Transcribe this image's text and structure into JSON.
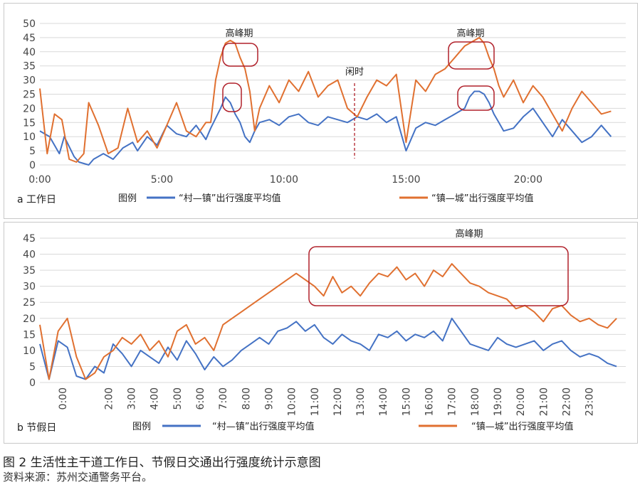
{
  "charts": [
    {
      "id": "a",
      "subtitle": "a 工作日",
      "legend_title": "图例",
      "peak_label": "高峰期",
      "idle_label": "闲时",
      "chart_data": {
        "type": "line",
        "ylim": [
          0,
          50
        ],
        "yticks": [
          0,
          5,
          10,
          15,
          20,
          25,
          30,
          35,
          40,
          45,
          50
        ],
        "xlim": [
          0,
          24
        ],
        "xticks": [
          0,
          5,
          10,
          15,
          20
        ],
        "xtick_labels": [
          "0:00",
          "5:00",
          "10:00",
          "15:00",
          "20:00"
        ],
        "grid": true,
        "annotations": [
          {
            "text": "高峰期",
            "x": 8.0
          },
          {
            "text": "高峰期",
            "x": 18.0
          },
          {
            "text": "闲时",
            "x": 13.0
          }
        ],
        "series": [
          {
            "name": "“村—镇”出行强度平均值",
            "color": "#4472c4",
            "x": [
              0,
              0.4,
              0.8,
              1.0,
              1.4,
              1.6,
              2.0,
              2.2,
              2.6,
              3.0,
              3.4,
              3.8,
              4.0,
              4.4,
              4.8,
              5.2,
              5.6,
              6.0,
              6.4,
              6.8,
              7.0,
              7.4,
              7.6,
              7.8,
              8.0,
              8.2,
              8.4,
              8.6,
              8.8,
              9.0,
              9.4,
              9.8,
              10.2,
              10.6,
              11.0,
              11.4,
              11.8,
              12.2,
              12.6,
              13.0,
              13.4,
              13.8,
              14.2,
              14.6,
              15.0,
              15.4,
              15.8,
              16.2,
              16.6,
              17.0,
              17.4,
              17.6,
              17.8,
              18.0,
              18.2,
              18.4,
              18.6,
              18.8,
              19.0,
              19.4,
              19.8,
              20.2,
              20.6,
              21.0,
              21.4,
              21.8,
              22.2,
              22.6,
              23.0,
              23.4
            ],
            "y": [
              12,
              10,
              4,
              10,
              3,
              1,
              0,
              2,
              4,
              2,
              6,
              8,
              5,
              10,
              7,
              14,
              11,
              10,
              14,
              9,
              13,
              20,
              24,
              22,
              18,
              15,
              10,
              8,
              12,
              15,
              16,
              14,
              17,
              18,
              15,
              14,
              17,
              16,
              15,
              17,
              16,
              18,
              15,
              17,
              5,
              13,
              15,
              14,
              16,
              18,
              20,
              24,
              26,
              26,
              25,
              22,
              18,
              15,
              12,
              13,
              17,
              20,
              15,
              10,
              16,
              12,
              8,
              10,
              14,
              10
            ]
          },
          {
            "name": "“镇—城”出行强度平均值",
            "color": "#e07030",
            "x": [
              0,
              0.3,
              0.6,
              0.9,
              1.2,
              1.5,
              1.8,
              2.0,
              2.4,
              2.8,
              3.2,
              3.6,
              4.0,
              4.4,
              4.8,
              5.2,
              5.6,
              6.0,
              6.4,
              6.8,
              7.0,
              7.2,
              7.4,
              7.6,
              7.8,
              8.0,
              8.2,
              8.4,
              8.6,
              8.8,
              9.0,
              9.4,
              9.8,
              10.2,
              10.6,
              11.0,
              11.4,
              11.8,
              12.2,
              12.6,
              13.0,
              13.4,
              13.8,
              14.2,
              14.6,
              15.0,
              15.4,
              15.8,
              16.2,
              16.6,
              17.0,
              17.2,
              17.4,
              17.6,
              17.8,
              18.0,
              18.2,
              18.4,
              18.6,
              18.8,
              19.0,
              19.4,
              19.8,
              20.2,
              20.6,
              21.0,
              21.4,
              21.8,
              22.2,
              22.6,
              23.0,
              23.4
            ],
            "y": [
              27,
              4,
              18,
              16,
              2,
              1,
              4,
              22,
              14,
              4,
              6,
              20,
              8,
              12,
              6,
              14,
              22,
              12,
              10,
              15,
              15,
              30,
              38,
              43,
              44,
              43,
              38,
              34,
              26,
              12,
              20,
              28,
              22,
              30,
              26,
              33,
              24,
              28,
              30,
              20,
              17,
              24,
              30,
              28,
              32,
              8,
              30,
              26,
              32,
              34,
              38,
              40,
              42,
              43,
              44,
              45,
              43,
              38,
              34,
              28,
              24,
              30,
              22,
              28,
              24,
              18,
              12,
              20,
              26,
              22,
              18,
              19
            ]
          }
        ]
      }
    },
    {
      "id": "b",
      "subtitle": "b 节假日",
      "legend_title": "图例",
      "peak_label": "高峰期",
      "chart_data": {
        "type": "line",
        "ylim": [
          0,
          45
        ],
        "yticks": [
          0,
          5,
          10,
          15,
          20,
          25,
          30,
          35,
          40,
          45
        ],
        "xlim": [
          -1,
          24.6
        ],
        "xticks": [
          0,
          1,
          2,
          3,
          4,
          5,
          6,
          7,
          8,
          9,
          10,
          11,
          12,
          13,
          14,
          15,
          16,
          17,
          18,
          19,
          20,
          21,
          22,
          23
        ],
        "xtick_labels": [
          "0:00",
          "",
          "2:00",
          "3:00",
          "4:00",
          "5:00",
          "6:00",
          "7:00",
          "8:00",
          "9:00",
          "10:00",
          "11:00",
          "12:00",
          "13:00",
          "14:00",
          "15:00",
          "16:00",
          "17:00",
          "18:00",
          "19:00",
          "20:00",
          "21:00",
          "22:00",
          "23:00"
        ],
        "grid": true,
        "annotations": [
          {
            "text": "高峰期",
            "x": 17.0
          }
        ],
        "series": [
          {
            "name": "“村—镇”出行强度平均值",
            "color": "#4472c4",
            "x": [
              -1,
              -0.6,
              -0.2,
              0.2,
              0.6,
              1.0,
              1.4,
              1.8,
              2.2,
              2.6,
              3.0,
              3.4,
              3.8,
              4.2,
              4.6,
              5.0,
              5.4,
              5.8,
              6.2,
              6.6,
              7.0,
              7.4,
              7.8,
              8.2,
              8.6,
              9.0,
              9.4,
              9.8,
              10.2,
              10.6,
              11.0,
              11.4,
              11.8,
              12.2,
              12.6,
              13.0,
              13.4,
              13.8,
              14.2,
              14.6,
              15.0,
              15.4,
              15.8,
              16.2,
              16.6,
              17.0,
              17.4,
              17.8,
              18.2,
              18.6,
              19.0,
              19.4,
              19.8,
              20.2,
              20.6,
              21.0,
              21.4,
              21.8,
              22.2,
              22.6,
              23.0,
              23.4,
              23.8,
              24.2
            ],
            "y": [
              12,
              1,
              13,
              11,
              2,
              1,
              5,
              3,
              12,
              9,
              5,
              10,
              8,
              6,
              11,
              7,
              13,
              9,
              4,
              8,
              5,
              7,
              10,
              12,
              14,
              12,
              16,
              17,
              19,
              16,
              18,
              14,
              12,
              15,
              13,
              12,
              10,
              15,
              14,
              16,
              13,
              15,
              14,
              16,
              13,
              20,
              16,
              12,
              11,
              10,
              14,
              12,
              11,
              12,
              13,
              10,
              12,
              13,
              10,
              8,
              9,
              8,
              6,
              5
            ]
          },
          {
            "name": "“镇—城”出行强度平均值",
            "color": "#e07030",
            "x": [
              -1,
              -0.6,
              -0.2,
              0.2,
              0.6,
              1.0,
              1.4,
              1.8,
              2.2,
              2.6,
              3.0,
              3.4,
              3.8,
              4.2,
              4.6,
              5.0,
              5.4,
              5.8,
              6.2,
              6.6,
              7.0,
              7.4,
              7.8,
              8.2,
              8.6,
              9.0,
              9.4,
              9.8,
              10.2,
              10.6,
              11.0,
              11.4,
              11.8,
              12.2,
              12.6,
              13.0,
              13.4,
              13.8,
              14.2,
              14.6,
              15.0,
              15.4,
              15.8,
              16.2,
              16.6,
              17.0,
              17.4,
              17.8,
              18.2,
              18.6,
              19.0,
              19.4,
              19.8,
              20.2,
              20.6,
              21.0,
              21.4,
              21.8,
              22.2,
              22.6,
              23.0,
              23.4,
              23.8,
              24.2
            ],
            "y": [
              18,
              1,
              16,
              20,
              8,
              1,
              3,
              8,
              10,
              14,
              12,
              15,
              10,
              13,
              8,
              16,
              18,
              12,
              14,
              10,
              18,
              20,
              22,
              24,
              26,
              28,
              30,
              32,
              34,
              32,
              30,
              27,
              33,
              28,
              30,
              27,
              31,
              34,
              33,
              36,
              32,
              34,
              30,
              35,
              33,
              37,
              34,
              31,
              30,
              28,
              27,
              26,
              23,
              24,
              22,
              19,
              23,
              24,
              21,
              19,
              20,
              18,
              17,
              20
            ]
          }
        ]
      }
    }
  ],
  "caption": "图 2 生活性主干道工作日、节假日交通出行强度统计示意图",
  "source": "资料来源：苏州交通警务平台。"
}
